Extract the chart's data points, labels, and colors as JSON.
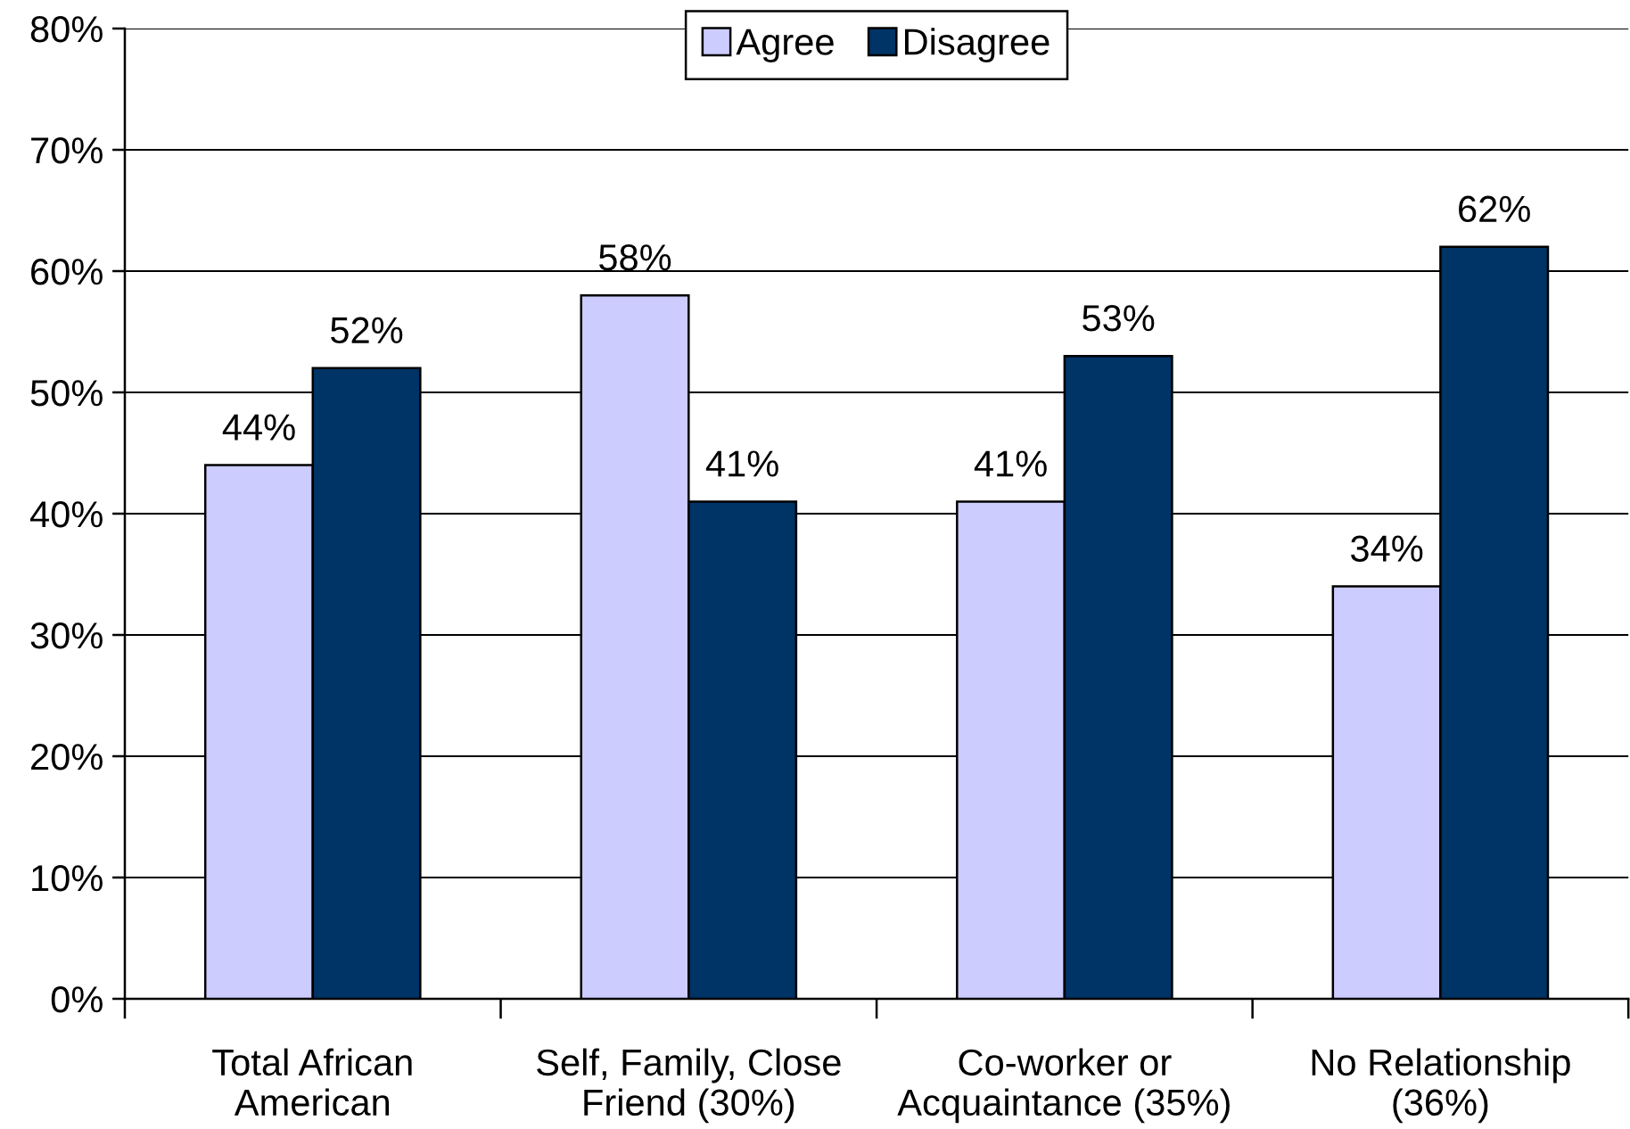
{
  "chart_data": {
    "type": "bar",
    "categories": [
      "Total African\nAmerican",
      "Self, Family, Close\nFriend (30%)",
      "Co-worker or\nAcquaintance (35%)",
      "No Relationship\n(36%)"
    ],
    "series": [
      {
        "name": "Agree",
        "color": "#ccccff",
        "values": [
          44,
          58,
          41,
          34
        ],
        "value_labels": [
          "44%",
          "58%",
          "41%",
          "34%"
        ]
      },
      {
        "name": "Disagree",
        "color": "#003366",
        "values": [
          52,
          41,
          53,
          62
        ],
        "value_labels": [
          "52%",
          "41%",
          "53%",
          "62%"
        ]
      }
    ],
    "ylim": [
      0,
      80
    ],
    "yticks": [
      {
        "value": 0,
        "label": "0%"
      },
      {
        "value": 10,
        "label": "10%"
      },
      {
        "value": 20,
        "label": "20%"
      },
      {
        "value": 30,
        "label": "30%"
      },
      {
        "value": 40,
        "label": "40%"
      },
      {
        "value": 50,
        "label": "50%"
      },
      {
        "value": 60,
        "label": "60%"
      },
      {
        "value": 70,
        "label": "70%"
      },
      {
        "value": 80,
        "label": "80%"
      }
    ],
    "grid": "y",
    "legend": "top"
  }
}
